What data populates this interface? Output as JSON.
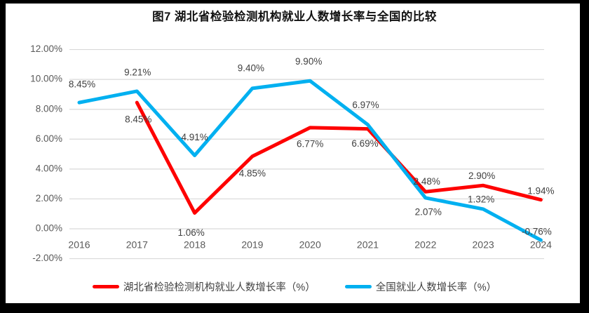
{
  "title": "图7 湖北省检验检测机构就业人数增长率与全国的比较",
  "chart_data": {
    "type": "line",
    "categories": [
      "2016",
      "2017",
      "2018",
      "2019",
      "2020",
      "2021",
      "2022",
      "2023",
      "2024"
    ],
    "series": [
      {
        "name": "湖北省检验检测机构就业人数增长率（%）",
        "color": "#FE0000",
        "values": [
          null,
          8.45,
          1.06,
          4.85,
          6.77,
          6.69,
          2.48,
          2.9,
          1.94
        ],
        "labels": [
          null,
          "8.45%",
          "1.06%",
          "4.85%",
          "6.77%",
          "6.69%",
          "2.48%",
          "2.90%",
          "1.94%"
        ]
      },
      {
        "name": "全国就业人数增长率（%）",
        "color": "#00B0F0",
        "values": [
          8.45,
          9.21,
          4.91,
          9.4,
          9.9,
          6.97,
          2.07,
          1.32,
          -0.76
        ],
        "labels": [
          "8.45%",
          "9.21%",
          "4.91%",
          "9.40%",
          "9.90%",
          "6.97%",
          "2.07%",
          "1.32%",
          "-0.76%"
        ]
      }
    ],
    "ylim": [
      -2,
      12
    ],
    "ytick_step": 2,
    "ytick_labels": [
      "12.00%",
      "10.00%",
      "8.00%",
      "6.00%",
      "4.00%",
      "2.00%",
      "0.00%",
      "-2.00%"
    ],
    "grid": true,
    "gridline_color": "#d9d9d9",
    "legend_position": "bottom"
  }
}
